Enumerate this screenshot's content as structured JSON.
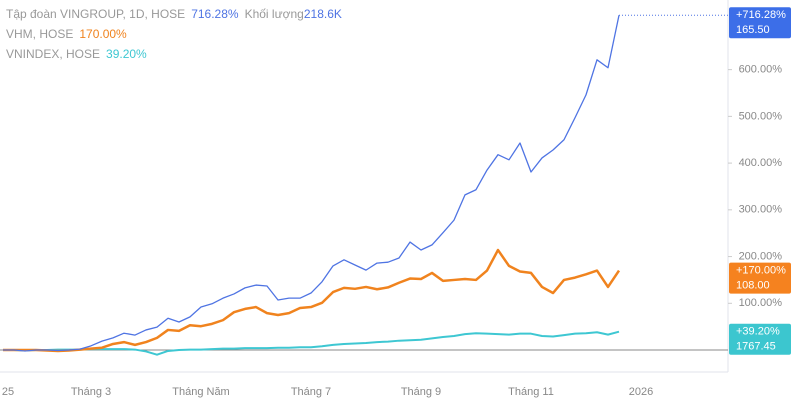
{
  "chart_data": {
    "type": "line",
    "legend": [
      {
        "name": "Tập đoàn VINGROUP, 1D, HOSE",
        "value": "716.28%",
        "extra_name": "Khối lượng",
        "extra_value": "218.6K"
      },
      {
        "name": "VHM, HOSE",
        "value": "170.00%"
      },
      {
        "name": "VNINDEX, HOSE",
        "value": "39.20%"
      }
    ],
    "categories": [
      "25",
      null,
      null,
      null,
      null,
      null,
      null,
      null,
      "Tháng 3",
      null,
      null,
      null,
      null,
      null,
      null,
      null,
      null,
      null,
      "Tháng Năm",
      null,
      null,
      null,
      null,
      null,
      null,
      null,
      null,
      null,
      "Tháng 7",
      null,
      null,
      null,
      null,
      null,
      null,
      null,
      null,
      null,
      "Tháng 9",
      null,
      null,
      null,
      null,
      null,
      null,
      null,
      null,
      null,
      "Tháng 11",
      null,
      null,
      null,
      null,
      null,
      null,
      null,
      null,
      null,
      "2026"
    ],
    "series": [
      {
        "color": "#4f74e3",
        "badge": [
          "+716.28%",
          "165.50"
        ],
        "badge_color": "#3c6ee8",
        "values": [
          0,
          0,
          -2,
          0,
          0,
          -1,
          0,
          2,
          9,
          19,
          26,
          36,
          32,
          43,
          49,
          68,
          60,
          71,
          92,
          99,
          111,
          120,
          133,
          139,
          137,
          107,
          111,
          111,
          122,
          146,
          180,
          193,
          182,
          171,
          186,
          188,
          197,
          231,
          214,
          225,
          251,
          278,
          332,
          343,
          385,
          418,
          407,
          443,
          381,
          411,
          428,
          450,
          497,
          546,
          621,
          604,
          716.28,
          null,
          null
        ]
      },
      {
        "color": "#f0831e",
        "badge": [
          "+170.00%",
          "108.00"
        ],
        "badge_color": "#f5821f",
        "values": [
          0,
          0,
          0,
          0,
          -1,
          -2,
          -1,
          1,
          3,
          5,
          13,
          17,
          11,
          17,
          26,
          43,
          41,
          53,
          51,
          56,
          64,
          81,
          88,
          92,
          79,
          75,
          79,
          90,
          92,
          101,
          124,
          133,
          131,
          135,
          130,
          134,
          144,
          153,
          152,
          165,
          148,
          150,
          152,
          150,
          170,
          214,
          180,
          168,
          165,
          135,
          122,
          150,
          155,
          162,
          170,
          135,
          170,
          null,
          null
        ]
      },
      {
        "color": "#3ec7d2",
        "badge": [
          "+39.20%",
          "1767.45"
        ],
        "badge_color": "#3cc6cf",
        "values": [
          0,
          0,
          -1,
          0,
          0,
          1,
          1,
          1,
          2,
          2,
          2,
          2,
          1,
          -3,
          -10,
          -2,
          0,
          1,
          1,
          2,
          3,
          3,
          4,
          4,
          4,
          5,
          5,
          6,
          6,
          8,
          11,
          13,
          14,
          15,
          17,
          18,
          20,
          21,
          22,
          25,
          28,
          30,
          34,
          36,
          35,
          34,
          33,
          35,
          35,
          30,
          29,
          32,
          35,
          36,
          38,
          33,
          39.2,
          null,
          null
        ]
      }
    ],
    "ylim": [
      -47,
      749
    ],
    "yticks": [
      {
        "value": 100,
        "label": "100.00%"
      },
      {
        "value": 200,
        "label": "200.00%"
      },
      {
        "value": 300,
        "label": "300.00%"
      },
      {
        "value": 400,
        "label": "400.00%"
      },
      {
        "value": 500,
        "label": "500.00%"
      },
      {
        "value": 600,
        "label": "600.00%"
      }
    ],
    "zero_line": true
  }
}
